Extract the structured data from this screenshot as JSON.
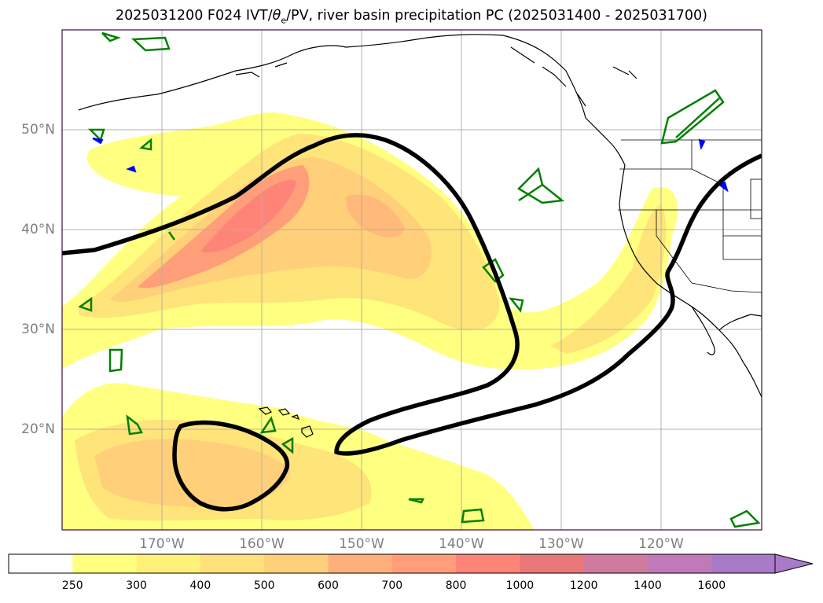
{
  "title": "2025031200 F024 IVT/θe/PV, river basin precipitation PC (2025031400 - 2025031700)",
  "title_parts": {
    "prefix": "2025031200 F024 IVT/",
    "theta": "θ",
    "theta_sub": "e",
    "suffix": "/PV, river basin precipitation PC (2025031400 - 2025031700)"
  },
  "map": {
    "extent": {
      "lon_min": -180,
      "lon_max": -110,
      "lat_min": 10,
      "lat_max": 60
    },
    "lat_labels": [
      "50°N",
      "40°N",
      "30°N",
      "20°N"
    ],
    "lon_labels": [
      "170°W",
      "160°W",
      "150°W",
      "140°W",
      "130°W",
      "120°W"
    ],
    "grid": true,
    "colors": {
      "coastline": "#000000",
      "contour_black": "#000000",
      "pv_green": "#008000",
      "pv_blue": "#0000ff",
      "frame": "#3a0a3a"
    }
  },
  "colorbar": {
    "levels": [
      "250",
      "300",
      "400",
      "500",
      "600",
      "700",
      "800",
      "1000",
      "1200",
      "1400",
      "1600"
    ],
    "colors": [
      "#ffffff",
      "#ffff80",
      "#fff07a",
      "#ffe07a",
      "#ffd07a",
      "#ffb07a",
      "#ff9e78",
      "#ff8478",
      "#e8777a",
      "#d07aa0",
      "#c07ab8",
      "#a87ac8"
    ],
    "extend": "max"
  },
  "chart_data": {
    "type": "heatmap",
    "variable": "IVT",
    "levels": [
      250,
      300,
      400,
      500,
      600,
      700,
      800,
      1000,
      1200,
      1400,
      1600
    ],
    "features": [
      {
        "kind": "IVT maximum",
        "lon": -157,
        "lat": 44,
        "approx_max": 900
      },
      {
        "kind": "IVT maximum",
        "lon": -147,
        "lat": 40,
        "approx_max": 600
      },
      {
        "kind": "IVT band toward California",
        "lon": -124,
        "lat": 35,
        "approx_max": 500
      },
      {
        "kind": "IVT subtropical",
        "lon": -165,
        "lat": 17,
        "approx_max": 450
      }
    ]
  }
}
